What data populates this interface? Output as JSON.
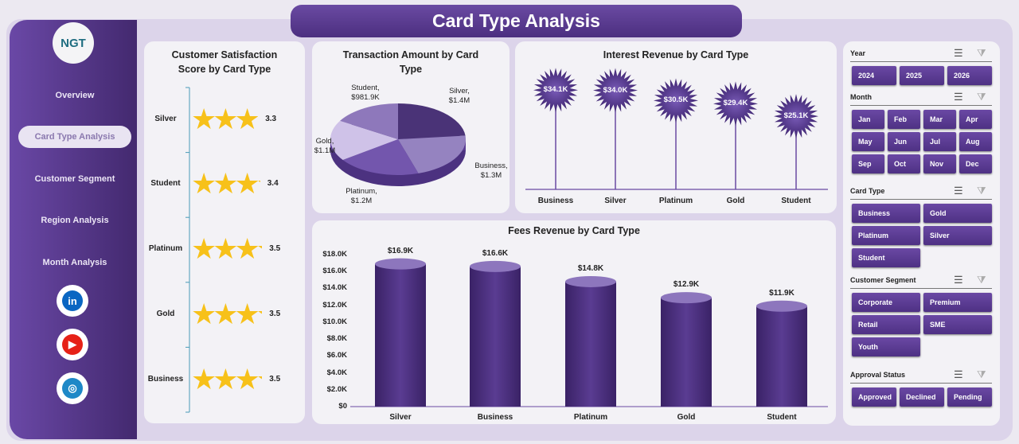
{
  "title": "Card Type Analysis",
  "logo": "NGT",
  "nav": [
    "Overview",
    "Card Type Analysis",
    "Customer Segment",
    "Region Analysis",
    "Month Analysis"
  ],
  "social": [
    {
      "name": "linkedin-icon",
      "glyph": "in",
      "color": "#0a66c2"
    },
    {
      "name": "youtube-icon",
      "glyph": "▶",
      "color": "#e62117"
    },
    {
      "name": "web-icon",
      "glyph": "◎",
      "color": "#1e88c7"
    }
  ],
  "satisfaction": {
    "title": "Customer Satisfaction Score by Card Type",
    "chart_type": "star-rating",
    "categories": [
      "Silver",
      "Student",
      "Platinum",
      "Gold",
      "Business"
    ],
    "values": [
      3.3,
      3.4,
      3.5,
      3.5,
      3.5
    ],
    "labels": [
      "3.3",
      "3.4",
      "3.5",
      "3.5",
      "3.5"
    ],
    "color": "#f7c11a"
  },
  "chart_data": [
    {
      "type": "pie",
      "title": "Transaction Amount by Card Type",
      "categories": [
        "Silver",
        "Business",
        "Platinum",
        "Gold",
        "Student"
      ],
      "values": [
        1.4,
        1.3,
        1.2,
        1.1,
        0.9819
      ],
      "labels": [
        "Silver,|$1.4M",
        "Business,|$1.3M",
        "Platinum,|$1.2M",
        "Gold,|$1.1M",
        "Student,|$981.9K"
      ],
      "colors": [
        "#4a3377",
        "#9583c0",
        "#7356ad",
        "#cfc2e8",
        "#8e78bb"
      ]
    },
    {
      "type": "lollipop",
      "title": "Interest Revenue by Card Type",
      "categories": [
        "Business",
        "Silver",
        "Platinum",
        "Gold",
        "Student"
      ],
      "values": [
        34.1,
        34.0,
        30.5,
        29.4,
        25.1
      ],
      "labels": [
        "$34.1K",
        "$34.0K",
        "$30.5K",
        "$29.4K",
        "$25.1K"
      ],
      "color": "#4e3184"
    },
    {
      "type": "bar",
      "title": "Fees Revenue by Card Type",
      "categories": [
        "Silver",
        "Business",
        "Platinum",
        "Gold",
        "Student"
      ],
      "values": [
        16.9,
        16.6,
        14.8,
        12.9,
        11.9
      ],
      "labels": [
        "$16.9K",
        "$16.6K",
        "$14.8K",
        "$12.9K",
        "$11.9K"
      ],
      "ylim": [
        0,
        18
      ],
      "yticks": [
        "$0",
        "$2.0K",
        "$4.0K",
        "$6.0K",
        "$8.0K",
        "$10.0K",
        "$12.0K",
        "$14.0K",
        "$16.0K",
        "$18.0K"
      ],
      "color": "#4e3184"
    }
  ],
  "slicers": [
    {
      "title": "Year",
      "items": [
        "2024",
        "2025",
        "2026"
      ]
    },
    {
      "title": "Month",
      "items": [
        "Jan",
        "Feb",
        "Mar",
        "Apr",
        "May",
        "Jun",
        "Jul",
        "Aug",
        "Sep",
        "Oct",
        "Nov",
        "Dec"
      ]
    },
    {
      "title": "Card Type",
      "items": [
        "Business",
        "Gold",
        "Platinum",
        "Silver",
        "Student"
      ]
    },
    {
      "title": "Customer Segment",
      "items": [
        "Corporate",
        "Premium",
        "Retail",
        "SME",
        "Youth"
      ]
    },
    {
      "title": "Approval Status",
      "items": [
        "Approved",
        "Declined",
        "Pending"
      ]
    }
  ]
}
